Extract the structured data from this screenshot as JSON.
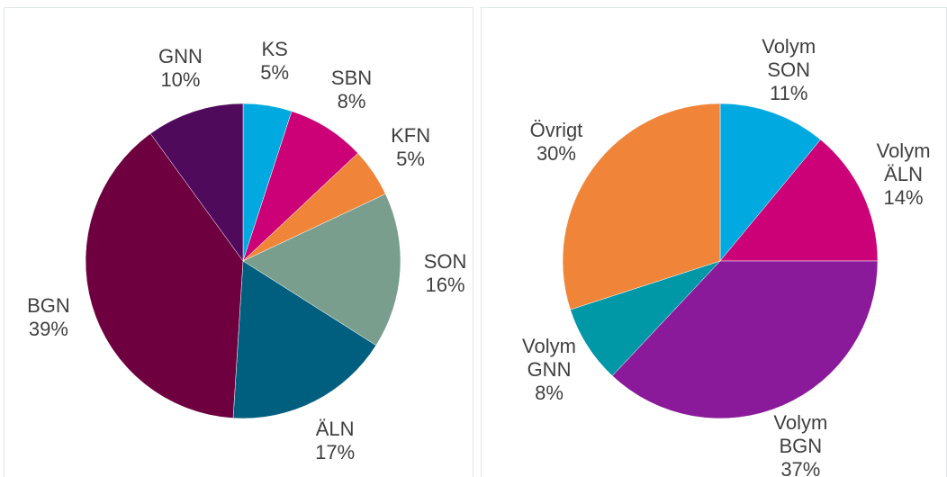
{
  "chart_data": [
    {
      "type": "pie",
      "categories": [
        "KS",
        "SBN",
        "KFN",
        "SON",
        "ÄLN",
        "BGN",
        "GNN"
      ],
      "values": [
        5,
        8,
        5,
        16,
        17,
        39,
        10
      ],
      "value_labels": [
        "5%",
        "8%",
        "5%",
        "16%",
        "17%",
        "39%",
        "10%"
      ],
      "colors": [
        "#00a9e0",
        "#cc0077",
        "#f08539",
        "#7a9e8e",
        "#005f7f",
        "#6e0040",
        "#4f0a5c"
      ]
    },
    {
      "type": "pie",
      "categories": [
        "Volym SON",
        "Volym ÄLN",
        "Volym BGN",
        "Volym GNN",
        "Övrigt"
      ],
      "values": [
        11,
        14,
        37,
        8,
        30
      ],
      "value_labels": [
        "11%",
        "14%",
        "37%",
        "8%",
        "30%"
      ],
      "colors": [
        "#00a9e0",
        "#cc0077",
        "#8a1a9a",
        "#0097a7",
        "#f08539"
      ]
    }
  ]
}
